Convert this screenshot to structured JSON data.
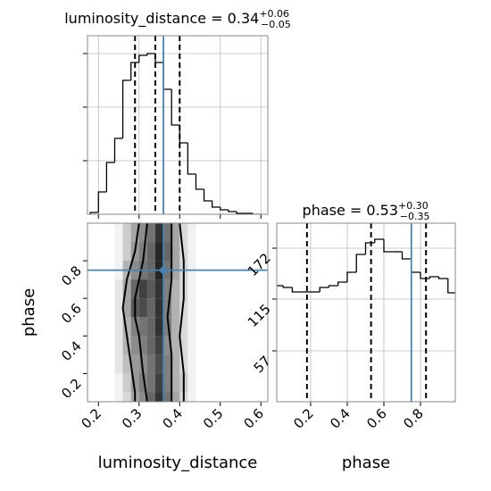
{
  "chart_data": [
    {
      "type": "histogram",
      "title": "luminosity_distance = 0.34",
      "title_sup": "+0.06",
      "title_sub": "−0.05",
      "bins": [
        0.18,
        0.2,
        0.22,
        0.24,
        0.26,
        0.28,
        0.3,
        0.32,
        0.34,
        0.36,
        0.38,
        0.4,
        0.42,
        0.44,
        0.46,
        0.48,
        0.5,
        0.52,
        0.54,
        0.56,
        0.58,
        0.6
      ],
      "counts": [
        2,
        25,
        58,
        85,
        150,
        170,
        178,
        180,
        170,
        140,
        100,
        80,
        45,
        28,
        15,
        8,
        5,
        3,
        1,
        1,
        0
      ],
      "color": "#000000",
      "xlim": [
        0.173,
        0.617
      ],
      "ylim": [
        0,
        200
      ],
      "xticks": [
        0.2,
        0.3,
        0.4,
        0.5,
        0.6
      ],
      "yticks": [
        60,
        120,
        180
      ],
      "tick_labels": false,
      "grid": true,
      "quantiles": [
        0.29,
        0.34,
        0.4
      ],
      "truth_x": 0.36,
      "truth_color": "#4682b4"
    },
    {
      "type": "hist2d",
      "xlabel": "luminosity_distance",
      "ylabel": "phase",
      "x_edges": [
        0.24,
        0.26,
        0.28,
        0.3,
        0.32,
        0.34,
        0.36,
        0.38,
        0.4,
        0.42,
        0.44
      ],
      "y_edges": [
        0.0,
        0.1,
        0.2,
        0.3,
        0.4,
        0.5,
        0.6,
        0.7,
        0.8,
        0.9,
        1.0
      ],
      "density": [
        [
          0.05,
          0.15,
          0.35,
          0.45,
          0.6,
          0.8,
          0.55,
          0.35,
          0.15,
          0.05
        ],
        [
          0.05,
          0.2,
          0.4,
          0.5,
          0.55,
          0.75,
          0.5,
          0.3,
          0.2,
          0.05
        ],
        [
          0.1,
          0.25,
          0.4,
          0.45,
          0.55,
          0.7,
          0.5,
          0.3,
          0.15,
          0.05
        ],
        [
          0.1,
          0.3,
          0.45,
          0.5,
          0.6,
          0.75,
          0.45,
          0.3,
          0.15,
          0.05
        ],
        [
          0.1,
          0.3,
          0.5,
          0.55,
          0.6,
          0.8,
          0.5,
          0.3,
          0.15,
          0.05
        ],
        [
          0.1,
          0.35,
          0.65,
          0.7,
          0.6,
          0.8,
          0.5,
          0.3,
          0.15,
          0.05
        ],
        [
          0.1,
          0.35,
          0.6,
          0.75,
          0.65,
          0.8,
          0.5,
          0.3,
          0.15,
          0.05
        ],
        [
          0.05,
          0.3,
          0.45,
          0.55,
          0.6,
          0.85,
          0.55,
          0.35,
          0.15,
          0.05
        ],
        [
          0.05,
          0.2,
          0.4,
          0.5,
          0.6,
          0.85,
          0.6,
          0.35,
          0.15,
          0.05
        ],
        [
          0.05,
          0.2,
          0.35,
          0.45,
          0.55,
          0.8,
          0.55,
          0.35,
          0.15,
          0.05
        ]
      ],
      "contours": [
        {
          "x": [
            0.3,
            0.29,
            0.27,
            0.26,
            0.27,
            0.28,
            0.29,
            0.29
          ],
          "y": [
            1.0,
            0.85,
            0.7,
            0.55,
            0.4,
            0.25,
            0.1,
            0.05
          ]
        },
        {
          "x": [
            0.41,
            0.41,
            0.4,
            0.41,
            0.41,
            0.4
          ],
          "y": [
            0.05,
            0.2,
            0.4,
            0.6,
            0.8,
            1.0
          ]
        },
        {
          "x": [
            0.32,
            0.31,
            0.29,
            0.29,
            0.3,
            0.31,
            0.32
          ],
          "y": [
            1.0,
            0.8,
            0.6,
            0.5,
            0.4,
            0.2,
            0.05
          ]
        },
        {
          "x": [
            0.38,
            0.38,
            0.37,
            0.38,
            0.38
          ],
          "y": [
            0.05,
            0.3,
            0.5,
            0.7,
            1.0
          ]
        }
      ],
      "xlim": [
        0.173,
        0.617
      ],
      "ylim": [
        0.05,
        1.0
      ],
      "xticks": [
        0.2,
        0.3,
        0.4,
        0.5,
        0.6
      ],
      "yticks": [
        0.2,
        0.4,
        0.6,
        0.8
      ],
      "tick_labels": true,
      "grid": false,
      "truth_x": 0.36,
      "truth_y": 0.75,
      "truth_color": "#4682b4"
    },
    {
      "type": "histogram",
      "xlabel": "phase",
      "title": "phase = 0.53",
      "title_sup": "+0.30",
      "title_sub": "−0.35",
      "bins": [
        0.0,
        0.05,
        0.1,
        0.15,
        0.2,
        0.25,
        0.3,
        0.35,
        0.4,
        0.45,
        0.5,
        0.55,
        0.6,
        0.65,
        0.7,
        0.75,
        0.8,
        0.85,
        0.9,
        0.95,
        1.0
      ],
      "counts": [
        130,
        128,
        123,
        123,
        123,
        128,
        130,
        134,
        145,
        165,
        178,
        182,
        168,
        168,
        160,
        145,
        138,
        140,
        138,
        122
      ],
      "color": "#000000",
      "xlim": [
        0.015,
        0.99
      ],
      "ylim": [
        0,
        200
      ],
      "xticks": [
        0.2,
        0.4,
        0.6,
        0.8
      ],
      "yticks": [
        57,
        115,
        172
      ],
      "tick_labels": true,
      "grid": true,
      "quantiles": [
        0.18,
        0.53,
        0.83
      ],
      "truth_x": 0.75,
      "truth_color": "#4682b4"
    }
  ]
}
